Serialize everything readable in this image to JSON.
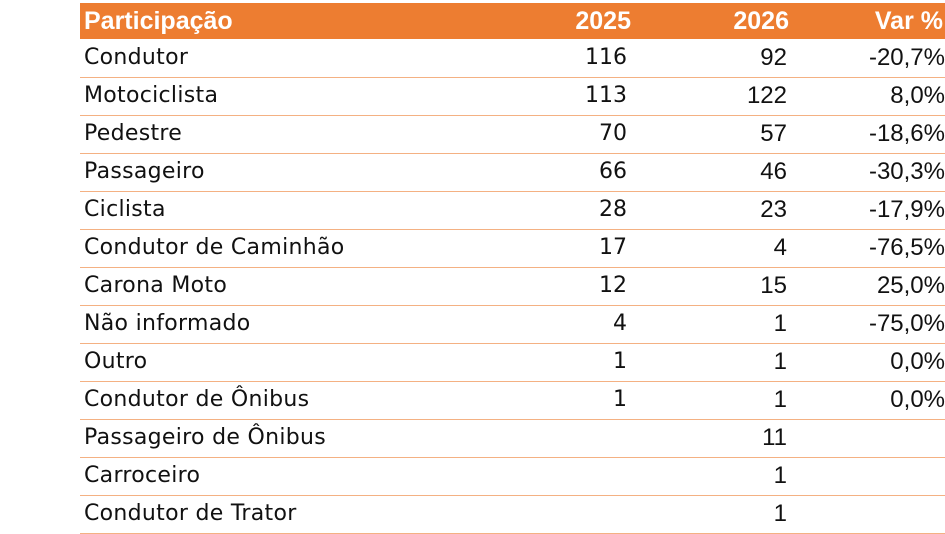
{
  "header": {
    "name": "Participação",
    "year1": "2025",
    "year2": "2026",
    "var": "Var %"
  },
  "rows": [
    {
      "name": "Condutor",
      "y1": "116",
      "y2": "92",
      "var": "-20,7%"
    },
    {
      "name": "Motociclista",
      "y1": "113",
      "y2": "122",
      "var": "8,0%"
    },
    {
      "name": "Pedestre",
      "y1": "70",
      "y2": "57",
      "var": "-18,6%"
    },
    {
      "name": "Passageiro",
      "y1": "66",
      "y2": "46",
      "var": "-30,3%"
    },
    {
      "name": "Ciclista",
      "y1": "28",
      "y2": "23",
      "var": "-17,9%"
    },
    {
      "name": "Condutor de Caminhão",
      "y1": "17",
      "y2": "4",
      "var": "-76,5%"
    },
    {
      "name": "Carona Moto",
      "y1": "12",
      "y2": "15",
      "var": "25,0%"
    },
    {
      "name": "Não informado",
      "y1": "4",
      "y2": "1",
      "var": "-75,0%"
    },
    {
      "name": "Outro",
      "y1": "1",
      "y2": "1",
      "var": "0,0%"
    },
    {
      "name": "Condutor de Ônibus",
      "y1": "1",
      "y2": "1",
      "var": "0,0%"
    },
    {
      "name": "Passageiro de Ônibus",
      "y1": "",
      "y2": "11",
      "var": ""
    },
    {
      "name": "Carroceiro",
      "y1": "",
      "y2": "1",
      "var": ""
    },
    {
      "name": "Condutor de Trator",
      "y1": "",
      "y2": "1",
      "var": ""
    }
  ],
  "colors": {
    "header_bg": "#ed7d31",
    "row_border": "#f4b183"
  }
}
